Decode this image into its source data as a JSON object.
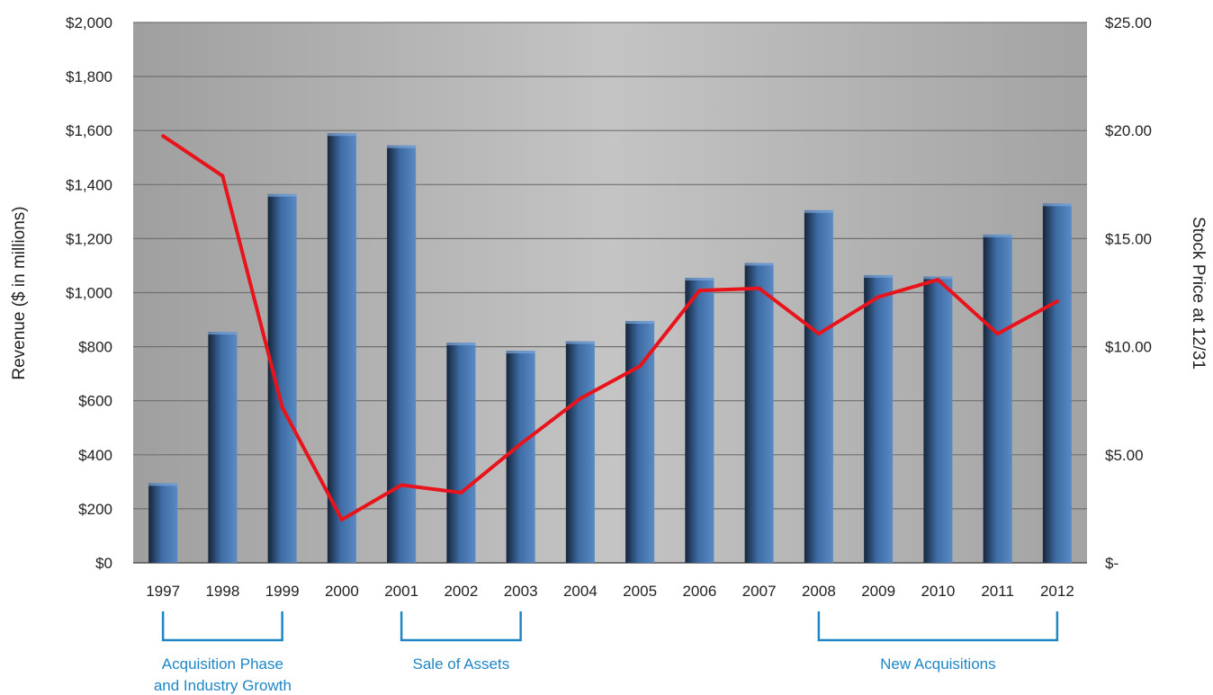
{
  "chart_data": {
    "type": "bar",
    "categories": [
      "1997",
      "1998",
      "1999",
      "2000",
      "2001",
      "2002",
      "2003",
      "2004",
      "2005",
      "2006",
      "2007",
      "2008",
      "2009",
      "2010",
      "2011",
      "2012"
    ],
    "series": [
      {
        "type": "bar",
        "axis": "left",
        "values": [
          295,
          855,
          1365,
          1590,
          1545,
          815,
          785,
          820,
          895,
          1055,
          1110,
          1305,
          1065,
          1060,
          1215,
          1330
        ]
      },
      {
        "type": "line",
        "axis": "right",
        "values": [
          19.75,
          17.9,
          7.2,
          2.0,
          3.6,
          3.25,
          5.5,
          7.6,
          9.1,
          12.6,
          12.7,
          10.6,
          12.3,
          13.1,
          10.6,
          12.1
        ]
      }
    ],
    "ylabel": "Revenue ($ in millions)",
    "y2label": "Stock Price at 12/31",
    "ylim": [
      0,
      2000
    ],
    "y2lim": [
      0,
      25
    ],
    "yticks": [
      "$0",
      "$200",
      "$400",
      "$600",
      "$800",
      "$1,000",
      "$1,200",
      "$1,400",
      "$1,600",
      "$1,800",
      "$2,000"
    ],
    "y2ticks": [
      "$-",
      "$5.00",
      "$10.00",
      "$15.00",
      "$20.00",
      "$25.00"
    ],
    "grid": true,
    "colors": {
      "bar": "#3f6fa8",
      "line": "#e8131b",
      "plot_bg": "#b2b2b2",
      "annotation": "#1f86c6"
    },
    "annotations": [
      {
        "label_lines": [
          "Acquisition Phase",
          "and Industry Growth"
        ],
        "from": "1997",
        "to": "1999"
      },
      {
        "label_lines": [
          "Sale of Assets"
        ],
        "from": "2001",
        "to": "2003"
      },
      {
        "label_lines": [
          "New Acquisitions"
        ],
        "from": "2008",
        "to": "2012"
      }
    ]
  }
}
